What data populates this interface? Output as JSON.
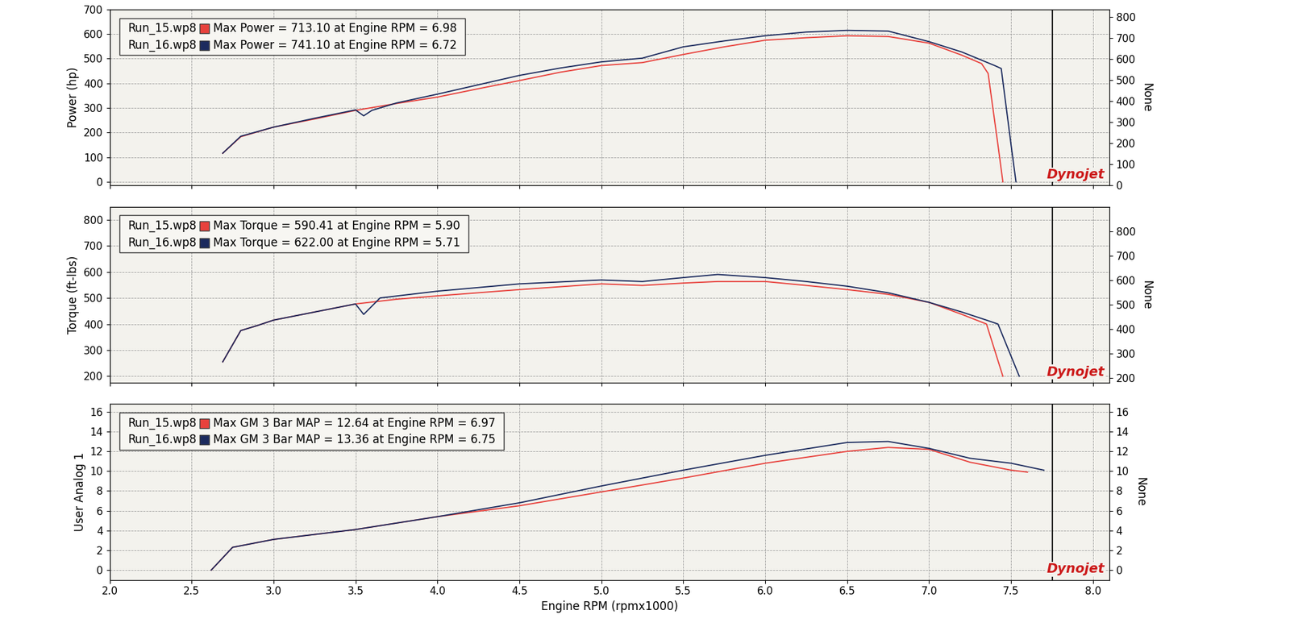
{
  "chart_data": [
    {
      "type": "line",
      "y_label": "Power (hp)",
      "y2_label": "None",
      "watermark": "Dynojet",
      "xlim": [
        2.0,
        8.1
      ],
      "xticks": [
        2.0,
        2.5,
        3.0,
        3.5,
        4.0,
        4.5,
        5.0,
        5.5,
        6.0,
        6.5,
        7.0,
        7.5,
        8.0
      ],
      "ylim": [
        -15,
        700
      ],
      "yticks": [
        0,
        100,
        200,
        300,
        400,
        500,
        600,
        700
      ],
      "y2lim": [
        0,
        835
      ],
      "y2ticks": [
        0,
        100,
        200,
        300,
        400,
        500,
        600,
        700,
        800
      ],
      "grid": true,
      "legend": "upper left",
      "tick_labels": "y",
      "marker_line_x": 7.75,
      "series": [
        {
          "name": "Run_15.wp8",
          "color": "#e8413c",
          "annotation": "Max Power = 713.10 at Engine RPM = 6.98",
          "x": [
            2.69,
            2.8,
            3.0,
            3.25,
            3.5,
            3.75,
            4.0,
            4.25,
            4.5,
            4.75,
            5.0,
            5.25,
            5.5,
            5.75,
            6.0,
            6.25,
            6.5,
            6.75,
            7.0,
            7.2,
            7.32,
            7.36,
            7.42,
            7.45
          ],
          "values": [
            116,
            183,
            222,
            255,
            290,
            318,
            344,
            378,
            411,
            445,
            472,
            484,
            517,
            548,
            575,
            585,
            593,
            590,
            563,
            514,
            480,
            440,
            150,
            0
          ]
        },
        {
          "name": "Run_16.wp8",
          "color": "#1c2b5e",
          "annotation": "Max Power = 741.10 at Engine RPM = 6.72",
          "x": [
            2.69,
            2.8,
            3.0,
            3.25,
            3.5,
            3.55,
            3.6,
            3.75,
            4.0,
            4.25,
            4.5,
            4.75,
            5.0,
            5.25,
            5.5,
            5.75,
            6.0,
            6.25,
            6.5,
            6.75,
            7.0,
            7.2,
            7.4,
            7.44,
            7.5,
            7.53
          ],
          "values": [
            116,
            185,
            222,
            258,
            292,
            268,
            290,
            320,
            356,
            394,
            432,
            462,
            487,
            502,
            548,
            572,
            593,
            608,
            615,
            612,
            569,
            527,
            472,
            460,
            150,
            0
          ]
        }
      ]
    },
    {
      "type": "line",
      "y_label": "Torque (ft-lbs)",
      "y2_label": "None",
      "watermark": "Dynojet",
      "xlim": [
        2.0,
        8.1
      ],
      "xticks": [
        2.0,
        2.5,
        3.0,
        3.5,
        4.0,
        4.5,
        5.0,
        5.5,
        6.0,
        6.5,
        7.0,
        7.5,
        8.0
      ],
      "ylim": [
        175,
        850
      ],
      "yticks": [
        200,
        300,
        400,
        500,
        600,
        700,
        800
      ],
      "y2lim": [
        180,
        900
      ],
      "y2ticks": [
        200,
        300,
        400,
        500,
        600,
        700,
        800
      ],
      "grid": true,
      "legend": "upper left",
      "tick_labels": "y",
      "marker_line_x": 7.75,
      "series": [
        {
          "name": "Run_15.wp8",
          "color": "#e8413c",
          "annotation": "Max Torque = 590.41 at Engine RPM = 5.90",
          "x": [
            2.69,
            2.8,
            2.9,
            3.0,
            3.25,
            3.5,
            3.75,
            4.0,
            4.5,
            5.0,
            5.25,
            5.5,
            5.71,
            6.0,
            6.25,
            6.5,
            6.75,
            7.0,
            7.2,
            7.35,
            7.45
          ],
          "values": [
            255,
            375,
            394,
            415,
            446,
            477,
            495,
            508,
            532,
            554,
            548,
            557,
            563,
            563,
            548,
            532,
            514,
            483,
            437,
            400,
            200
          ]
        },
        {
          "name": "Run_16.wp8",
          "color": "#1c2b5e",
          "annotation": "Max Torque = 622.00 at Engine RPM = 5.71",
          "x": [
            2.69,
            2.8,
            2.9,
            3.0,
            3.25,
            3.5,
            3.55,
            3.65,
            4.0,
            4.5,
            5.0,
            5.25,
            5.5,
            5.71,
            6.0,
            6.25,
            6.5,
            6.75,
            7.0,
            7.2,
            7.35,
            7.42,
            7.55
          ],
          "values": [
            255,
            375,
            394,
            415,
            446,
            477,
            437,
            500,
            526,
            554,
            569,
            563,
            578,
            590,
            578,
            563,
            545,
            520,
            483,
            446,
            415,
            400,
            200
          ]
        }
      ]
    },
    {
      "type": "line",
      "x_label": "Engine RPM (rpmx1000)",
      "y_label": "User Analog 1",
      "y2_label": "None",
      "watermark": "Dynojet",
      "xlim": [
        2.0,
        8.1
      ],
      "xticks": [
        2.0,
        2.5,
        3.0,
        3.5,
        4.0,
        4.5,
        5.0,
        5.5,
        6.0,
        6.5,
        7.0,
        7.5,
        8.0
      ],
      "ylim": [
        -1,
        16.8
      ],
      "yticks": [
        0,
        2,
        4,
        6,
        8,
        10,
        12,
        14,
        16
      ],
      "y2lim": [
        -1,
        16.8
      ],
      "y2ticks": [
        0,
        2,
        4,
        6,
        8,
        10,
        12,
        14,
        16
      ],
      "grid": true,
      "legend": "upper left",
      "tick_labels": true,
      "marker_line_x": 7.75,
      "series": [
        {
          "name": "Run_15.wp8",
          "color": "#e8413c",
          "annotation": "Max GM 3 Bar MAP = 12.64 at Engine RPM = 6.97",
          "x": [
            2.62,
            2.75,
            3.0,
            3.5,
            4.0,
            4.5,
            5.0,
            5.5,
            6.0,
            6.5,
            6.75,
            7.0,
            7.25,
            7.5,
            7.6
          ],
          "values": [
            0,
            2.3,
            3.1,
            4.1,
            5.4,
            6.5,
            7.9,
            9.3,
            10.8,
            12.0,
            12.4,
            12.2,
            10.9,
            10.1,
            9.9
          ]
        },
        {
          "name": "Run_16.wp8",
          "color": "#1c2b5e",
          "annotation": "Max GM 3 Bar MAP = 13.36 at Engine RPM = 6.75",
          "x": [
            2.62,
            2.75,
            3.0,
            3.5,
            4.0,
            4.5,
            5.0,
            5.5,
            6.0,
            6.5,
            6.75,
            7.0,
            7.25,
            7.5,
            7.7
          ],
          "values": [
            0,
            2.3,
            3.1,
            4.1,
            5.4,
            6.8,
            8.5,
            10.1,
            11.6,
            12.9,
            13.0,
            12.3,
            11.3,
            10.8,
            10.1
          ]
        }
      ]
    }
  ]
}
